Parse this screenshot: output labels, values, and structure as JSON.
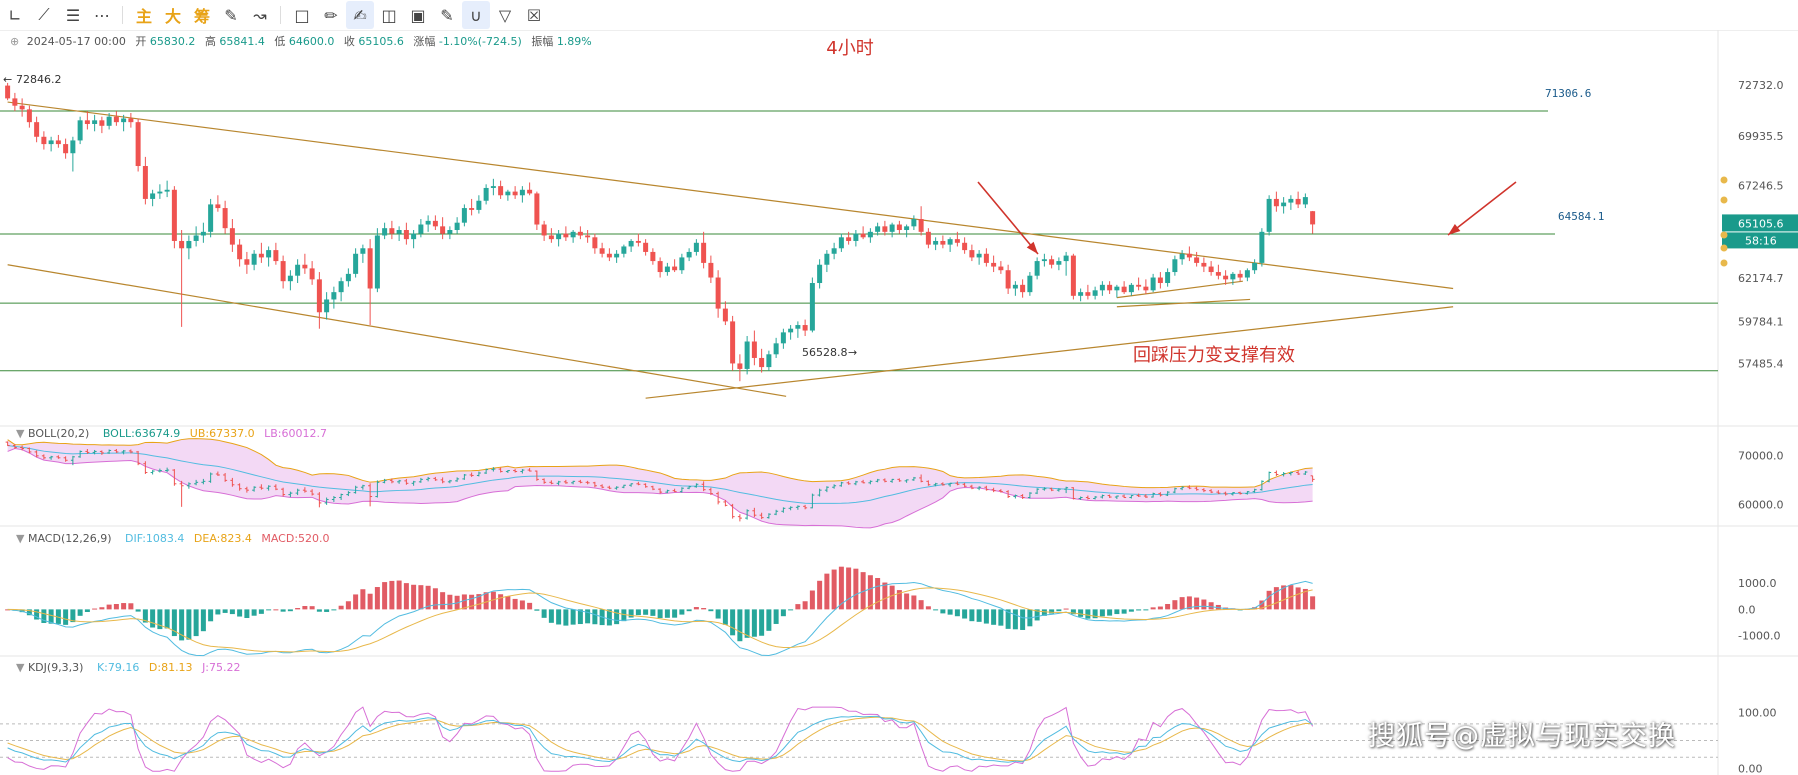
{
  "toolbar": {
    "buttons": [
      "line-tool-icon",
      "trend-line-icon",
      "hlines-icon",
      "more-icon"
    ],
    "text_buttons": [
      "主",
      "大",
      "筹"
    ],
    "right_buttons": [
      "note-icon",
      "ruler-icon",
      "pen-icon",
      "candles-icon",
      "lock-icon",
      "edit-icon",
      "magnet-icon",
      "filter-icon",
      "trash-icon"
    ]
  },
  "ohlc": {
    "date": "2024-05-17 00:00",
    "open_label": "开",
    "open": "65830.2",
    "high_label": "高",
    "high": "65841.4",
    "low_label": "低",
    "low": "64600.0",
    "close_label": "收",
    "close": "65105.6",
    "change_label": "涨幅",
    "change": "-1.10%(-724.5)",
    "amp_label": "振幅",
    "amp": "1.89%"
  },
  "colors": {
    "up": "#26a69a",
    "down": "#ef5350",
    "trend": "#b8862e",
    "level": "#3a8a3a",
    "annotation": "#d0342c",
    "price_tag": "#1a9a8b",
    "boll_band": "#f3d9f5",
    "macd_up": "#e15b64",
    "macd_down": "#26a69a",
    "dif": "#52bce0",
    "dea": "#e8b84b",
    "k": "#52bce0",
    "d": "#e8b84b",
    "j": "#d76fd6"
  },
  "bollLabel": {
    "name": "BOLL(20,2)",
    "mid": "BOLL:63674.9",
    "ub": "UB:67337.0",
    "lb": "LB:60012.7"
  },
  "macdLabel": {
    "name": "MACD(12,26,9)",
    "dif": "DIF:1083.4",
    "dea": "DEA:823.4",
    "macd": "MACD:520.0"
  },
  "kdjLabel": {
    "name": "KDJ(9,3,3)",
    "k": "K:79.16",
    "d": "D:81.13",
    "j": "J:75.22"
  },
  "watermark": "搜狐号@虚拟与现实交换",
  "chart_data": [
    {
      "type": "candlestick",
      "title": "4小时",
      "y_ticks": [
        "72732.0",
        "69935.5",
        "67246.5",
        "62174.7",
        "59784.1",
        "57485.4"
      ],
      "ylim": [
        55500,
        74100
      ],
      "price_tag": "65105.6",
      "countdown_tag": "58:16",
      "markers": {
        "high": "72846.2",
        "low": "56528.8"
      },
      "levels": [
        {
          "value": 71306.6,
          "label": "71306.6"
        },
        {
          "value": 64584.1,
          "label": "64584.1"
        },
        {
          "value": 60800,
          "label": ""
        },
        {
          "value": 57100,
          "label": ""
        }
      ],
      "annotation": "回踩压力变支撑有效",
      "candles": [
        [
          72700,
          72846.2,
          71900,
          72000
        ],
        [
          72000,
          72300,
          71300,
          71600
        ],
        [
          71600,
          72000,
          71000,
          71400
        ],
        [
          71400,
          71600,
          70400,
          70700
        ],
        [
          70700,
          71000,
          69600,
          69900
        ],
        [
          69900,
          70200,
          69200,
          69500
        ],
        [
          69500,
          69900,
          69100,
          69700
        ],
        [
          69700,
          70000,
          69300,
          69500
        ],
        [
          69500,
          69800,
          68700,
          69000
        ],
        [
          69000,
          69900,
          68000,
          69700
        ],
        [
          69700,
          71000,
          69500,
          70800
        ],
        [
          70800,
          71300,
          70300,
          70600
        ],
        [
          70600,
          71100,
          70200,
          70800
        ],
        [
          70800,
          71000,
          70100,
          70500
        ],
        [
          70500,
          71200,
          70300,
          71000
        ],
        [
          71000,
          71300,
          70500,
          70700
        ],
        [
          70700,
          71100,
          70200,
          70900
        ],
        [
          70900,
          71200,
          70400,
          70700
        ],
        [
          70700,
          70900,
          68000,
          68300
        ],
        [
          68300,
          68800,
          66200,
          66500
        ],
        [
          66500,
          67000,
          66100,
          66800
        ],
        [
          66800,
          67300,
          66500,
          66900
        ],
        [
          66900,
          67500,
          66600,
          67000
        ],
        [
          67000,
          67200,
          63800,
          64200
        ],
        [
          64200,
          64800,
          59500,
          63800
        ],
        [
          63800,
          64500,
          63200,
          64200
        ],
        [
          64200,
          65000,
          63900,
          64500
        ],
        [
          64500,
          65200,
          64100,
          64700
        ],
        [
          64700,
          66500,
          64400,
          66200
        ],
        [
          66200,
          66700,
          65800,
          66000
        ],
        [
          66000,
          66400,
          64600,
          64900
        ],
        [
          64900,
          65400,
          63600,
          64000
        ],
        [
          64000,
          64300,
          62800,
          63200
        ],
        [
          63200,
          63600,
          62400,
          62900
        ],
        [
          62900,
          63700,
          62600,
          63500
        ],
        [
          63500,
          64100,
          63000,
          63300
        ],
        [
          63300,
          63900,
          62800,
          63700
        ],
        [
          63700,
          64100,
          62900,
          63100
        ],
        [
          63100,
          63400,
          61600,
          62000
        ],
        [
          62000,
          62600,
          61500,
          62300
        ],
        [
          62300,
          63200,
          61900,
          62900
        ],
        [
          62900,
          63500,
          62400,
          62700
        ],
        [
          62700,
          63100,
          61800,
          62100
        ],
        [
          62100,
          62500,
          59400,
          60300
        ],
        [
          60300,
          61400,
          59900,
          61000
        ],
        [
          61000,
          61700,
          60500,
          61400
        ],
        [
          61400,
          62200,
          60900,
          62000
        ],
        [
          62000,
          62700,
          61700,
          62400
        ],
        [
          62400,
          63800,
          62200,
          63500
        ],
        [
          63500,
          64000,
          63000,
          63800
        ],
        [
          63800,
          64300,
          59600,
          61600
        ],
        [
          61600,
          64900,
          61400,
          64500
        ],
        [
          64500,
          65200,
          64300,
          64900
        ],
        [
          64900,
          65300,
          64300,
          64600
        ],
        [
          64600,
          65000,
          64200,
          64800
        ],
        [
          64800,
          65200,
          64000,
          64300
        ],
        [
          64300,
          64800,
          63800,
          64600
        ],
        [
          64600,
          65400,
          64400,
          65100
        ],
        [
          65100,
          65600,
          64700,
          65300
        ],
        [
          65300,
          65600,
          64800,
          65000
        ],
        [
          65000,
          65500,
          64300,
          64600
        ],
        [
          64600,
          65000,
          64300,
          64800
        ],
        [
          64800,
          65500,
          64600,
          65200
        ],
        [
          65200,
          66200,
          65000,
          66000
        ],
        [
          66000,
          66500,
          65600,
          65900
        ],
        [
          65900,
          66700,
          65700,
          66400
        ],
        [
          66400,
          67300,
          66200,
          67100
        ],
        [
          67100,
          67600,
          66700,
          67200
        ],
        [
          67200,
          67500,
          66500,
          66700
        ],
        [
          66700,
          67000,
          66400,
          66900
        ],
        [
          66900,
          67200,
          66500,
          66700
        ],
        [
          66700,
          67200,
          66300,
          67000
        ],
        [
          67000,
          67400,
          66700,
          66800
        ],
        [
          66800,
          66900,
          64800,
          65100
        ],
        [
          65100,
          65300,
          64200,
          64500
        ],
        [
          64500,
          64900,
          64100,
          64300
        ],
        [
          64300,
          64800,
          63900,
          64600
        ],
        [
          64600,
          65000,
          64200,
          64400
        ],
        [
          64400,
          64800,
          64100,
          64700
        ],
        [
          64700,
          65000,
          64300,
          64500
        ],
        [
          64500,
          64800,
          64100,
          64400
        ],
        [
          64400,
          64600,
          63500,
          63800
        ],
        [
          63800,
          64100,
          63300,
          63500
        ],
        [
          63500,
          63800,
          63100,
          63300
        ],
        [
          63300,
          63700,
          63000,
          63500
        ],
        [
          63500,
          64000,
          63300,
          63900
        ],
        [
          63900,
          64300,
          63600,
          64200
        ],
        [
          64200,
          64600,
          63900,
          64100
        ],
        [
          64100,
          64300,
          63400,
          63600
        ],
        [
          63600,
          63800,
          62900,
          63100
        ],
        [
          63100,
          63300,
          62200,
          62500
        ],
        [
          62500,
          63000,
          62300,
          62800
        ],
        [
          62800,
          63200,
          62500,
          62600
        ],
        [
          62600,
          63500,
          62400,
          63300
        ],
        [
          63300,
          63800,
          63100,
          63600
        ],
        [
          63600,
          64300,
          63400,
          64100
        ],
        [
          64100,
          64700,
          62700,
          63000
        ],
        [
          63000,
          63400,
          61900,
          62200
        ],
        [
          62200,
          62600,
          60000,
          60500
        ],
        [
          60500,
          60900,
          59600,
          59800
        ],
        [
          59800,
          60100,
          57100,
          57500
        ],
        [
          57500,
          58000,
          56528.8,
          57200
        ],
        [
          57200,
          59000,
          56900,
          58700
        ],
        [
          58700,
          59300,
          57400,
          57800
        ],
        [
          57800,
          58300,
          57000,
          57300
        ],
        [
          57300,
          58200,
          57100,
          58000
        ],
        [
          58000,
          58900,
          57800,
          58600
        ],
        [
          58600,
          59400,
          58300,
          59200
        ],
        [
          59200,
          59600,
          58800,
          59400
        ],
        [
          59400,
          59800,
          58900,
          59600
        ],
        [
          59600,
          59900,
          59000,
          59300
        ],
        [
          59300,
          62200,
          59200,
          61900
        ],
        [
          61900,
          63200,
          61600,
          62900
        ],
        [
          62900,
          63700,
          62500,
          63500
        ],
        [
          63500,
          64100,
          63200,
          63800
        ],
        [
          63800,
          64600,
          63600,
          64400
        ],
        [
          64400,
          64700,
          64000,
          64200
        ],
        [
          64200,
          64800,
          63900,
          64600
        ],
        [
          64600,
          65000,
          64300,
          64400
        ],
        [
          64400,
          64900,
          64100,
          64700
        ],
        [
          64700,
          65200,
          64500,
          65000
        ],
        [
          65000,
          65300,
          64500,
          64700
        ],
        [
          64700,
          65200,
          64400,
          65100
        ],
        [
          65100,
          65300,
          64600,
          64800
        ],
        [
          64800,
          65100,
          64400,
          65000
        ],
        [
          65000,
          65600,
          64800,
          65400
        ],
        [
          65400,
          66100,
          64500,
          64700
        ],
        [
          64700,
          64900,
          63800,
          64000
        ],
        [
          64000,
          64400,
          63700,
          64200
        ],
        [
          64200,
          64500,
          63800,
          64000
        ],
        [
          64000,
          64400,
          63600,
          64300
        ],
        [
          64300,
          64700,
          63900,
          64100
        ],
        [
          64100,
          64400,
          63500,
          63700
        ],
        [
          63700,
          64000,
          63100,
          63300
        ],
        [
          63300,
          63700,
          62900,
          63500
        ],
        [
          63500,
          63800,
          62800,
          63000
        ],
        [
          63000,
          63400,
          62500,
          62800
        ],
        [
          62800,
          63100,
          62400,
          62600
        ],
        [
          62600,
          62900,
          61300,
          61600
        ],
        [
          61600,
          62000,
          61200,
          61800
        ],
        [
          61800,
          62100,
          61100,
          61400
        ],
        [
          61400,
          62500,
          61200,
          62300
        ],
        [
          62300,
          63300,
          62100,
          63100
        ],
        [
          63100,
          63500,
          62800,
          63200
        ],
        [
          63200,
          63400,
          62700,
          62900
        ],
        [
          62900,
          63300,
          62600,
          63100
        ],
        [
          63100,
          63600,
          62300,
          63400
        ],
        [
          63400,
          63500,
          61000,
          61200
        ],
        [
          61200,
          61600,
          60900,
          61400
        ],
        [
          61400,
          61800,
          61000,
          61200
        ],
        [
          61200,
          61700,
          61000,
          61500
        ],
        [
          61500,
          62000,
          61200,
          61800
        ],
        [
          61800,
          62000,
          61300,
          61500
        ],
        [
          61500,
          61800,
          61100,
          61700
        ],
        [
          61700,
          62000,
          61300,
          61400
        ],
        [
          61400,
          61900,
          61200,
          61800
        ],
        [
          61800,
          62200,
          61500,
          61700
        ],
        [
          61700,
          62100,
          61300,
          61500
        ],
        [
          61500,
          62400,
          61400,
          62200
        ],
        [
          62200,
          62500,
          61600,
          61900
        ],
        [
          61900,
          62700,
          61700,
          62500
        ],
        [
          62500,
          63400,
          62300,
          63200
        ],
        [
          63200,
          63700,
          62900,
          63500
        ],
        [
          63500,
          63900,
          63100,
          63300
        ],
        [
          63300,
          63600,
          62800,
          63000
        ],
        [
          63000,
          63300,
          62500,
          62800
        ],
        [
          62800,
          63100,
          62300,
          62500
        ],
        [
          62500,
          62900,
          62100,
          62300
        ],
        [
          62300,
          62600,
          61800,
          62100
        ],
        [
          62100,
          62500,
          61800,
          62400
        ],
        [
          62400,
          62600,
          62000,
          62200
        ],
        [
          62200,
          62700,
          62000,
          62600
        ],
        [
          62600,
          63200,
          62400,
          63000
        ],
        [
          63000,
          64900,
          62800,
          64700
        ],
        [
          64700,
          66700,
          64500,
          66500
        ],
        [
          66500,
          66900,
          65800,
          66100
        ],
        [
          66100,
          66600,
          65700,
          66300
        ],
        [
          66300,
          66700,
          65900,
          66500
        ],
        [
          66500,
          66900,
          66000,
          66200
        ],
        [
          66200,
          66800,
          66000,
          66600
        ],
        [
          65830.2,
          65841.4,
          64600.0,
          65105.6
        ]
      ],
      "trendlines": [
        {
          "from": [
            0,
            71800
          ],
          "to": [
            198,
            61600
          ]
        },
        {
          "from": [
            0,
            62900
          ],
          "to": [
            106,
            55700
          ]
        },
        {
          "from": [
            88,
            55600
          ],
          "to": [
            198,
            60600
          ]
        },
        {
          "from": [
            153,
            61100
          ],
          "to": [
            169,
            62000
          ]
        },
        {
          "from": [
            153,
            60600
          ],
          "to": [
            170,
            61000
          ]
        }
      ]
    },
    {
      "type": "line",
      "title": "BOLL(20,2)",
      "y_ticks": [
        "70000.0",
        "60000.0"
      ],
      "ylim": [
        56000,
        71500
      ],
      "series": [
        "BOLL",
        "UB",
        "LB"
      ]
    },
    {
      "type": "bar",
      "title": "MACD(12,26,9)",
      "y_ticks": [
        "1000.0",
        "0.0",
        "-1000.0"
      ],
      "ylim": [
        -1700,
        1500
      ],
      "series": [
        "DIF",
        "DEA",
        "MACD"
      ]
    },
    {
      "type": "line",
      "title": "KDJ(9,3,3)",
      "y_ticks": [
        "100.00",
        "0.00"
      ],
      "ylim": [
        -10,
        112
      ],
      "series": [
        "K",
        "D",
        "J"
      ]
    }
  ]
}
